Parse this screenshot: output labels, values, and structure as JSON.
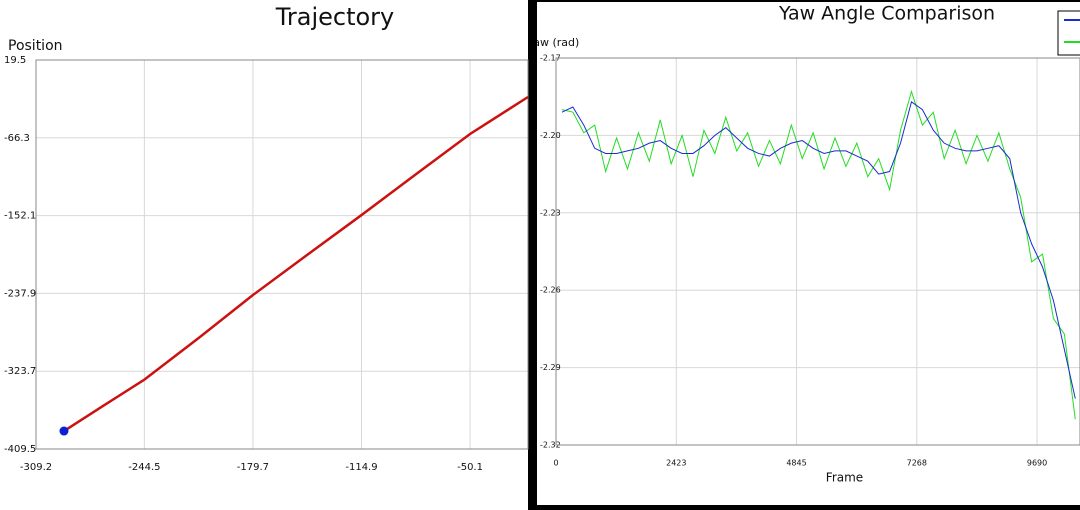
{
  "chart_data": [
    {
      "type": "line",
      "title": "Trajectory",
      "y_label": "Position",
      "x": [
        -292.5,
        -270,
        -244.5,
        -212,
        -179.7,
        -147,
        -114.9,
        -82,
        -50.1,
        -15.5
      ],
      "series": [
        {
          "color": "#cc1111",
          "marker_color": "#0a1fd6",
          "values": [
            -389.7,
            -363,
            -333,
            -287,
            -239.7,
            -195,
            -151.5,
            -106,
            -62.1,
            -21.3
          ]
        }
      ],
      "xlim": [
        -309.2,
        -15.5
      ],
      "ylim": [
        -409.5,
        19.5
      ],
      "xticks": [
        -309.2,
        -244.5,
        -179.7,
        -114.9,
        -50.1
      ],
      "yticks": [
        19.5,
        -66.3,
        -152.1,
        -237.9,
        -323.7,
        -409.5
      ],
      "grid": true
    },
    {
      "type": "line",
      "title": "Yaw Angle Comparison",
      "y_label": "Yaw (rad)",
      "x_label": "Frame",
      "x": [
        120,
        340,
        560,
        780,
        1000,
        1220,
        1440,
        1660,
        1880,
        2100,
        2320,
        2540,
        2760,
        2980,
        3200,
        3420,
        3640,
        3860,
        4080,
        4300,
        4520,
        4740,
        4960,
        5180,
        5400,
        5620,
        5840,
        6060,
        6280,
        6500,
        6720,
        6940,
        7160,
        7380,
        7600,
        7820,
        8040,
        8260,
        8480,
        8700,
        8920,
        9140,
        9360,
        9580,
        9800,
        10020,
        10240,
        10460
      ],
      "series": [
        {
          "color": "#22dd22",
          "values": [
            -2.19,
            -2.191,
            -2.199,
            -2.196,
            -2.214,
            -2.201,
            -2.213,
            -2.199,
            -2.21,
            -2.194,
            -2.211,
            -2.2,
            -2.216,
            -2.198,
            -2.207,
            -2.193,
            -2.206,
            -2.199,
            -2.212,
            -2.202,
            -2.211,
            -2.196,
            -2.209,
            -2.199,
            -2.213,
            -2.201,
            -2.212,
            -2.203,
            -2.216,
            -2.209,
            -2.221,
            -2.198,
            -2.183,
            -2.196,
            -2.191,
            -2.209,
            -2.198,
            -2.211,
            -2.2,
            -2.21,
            -2.199,
            -2.213,
            -2.224,
            -2.249,
            -2.246,
            -2.271,
            -2.277,
            -2.31
          ]
        },
        {
          "color": "#1a2bd0",
          "values": [
            -2.191,
            -2.189,
            -2.196,
            -2.205,
            -2.207,
            -2.207,
            -2.206,
            -2.205,
            -2.203,
            -2.202,
            -2.205,
            -2.207,
            -2.207,
            -2.204,
            -2.2,
            -2.197,
            -2.201,
            -2.205,
            -2.207,
            -2.208,
            -2.205,
            -2.203,
            -2.202,
            -2.205,
            -2.207,
            -2.206,
            -2.206,
            -2.208,
            -2.21,
            -2.215,
            -2.214,
            -2.203,
            -2.187,
            -2.19,
            -2.198,
            -2.203,
            -2.205,
            -2.206,
            -2.206,
            -2.205,
            -2.204,
            -2.209,
            -2.23,
            -2.242,
            -2.251,
            -2.264,
            -2.283,
            -2.302
          ]
        }
      ],
      "xlim": [
        0,
        10555
      ],
      "ylim": [
        -2.32,
        -2.17
      ],
      "xticks": [
        0,
        2423,
        4845,
        7268,
        9690
      ],
      "yticks": [
        -2.17,
        {
          "value": -2.2,
          "label": "-2.20"
        },
        -2.23,
        -2.26,
        -2.29,
        -2.32
      ],
      "grid": true,
      "legend": "upper right"
    }
  ]
}
